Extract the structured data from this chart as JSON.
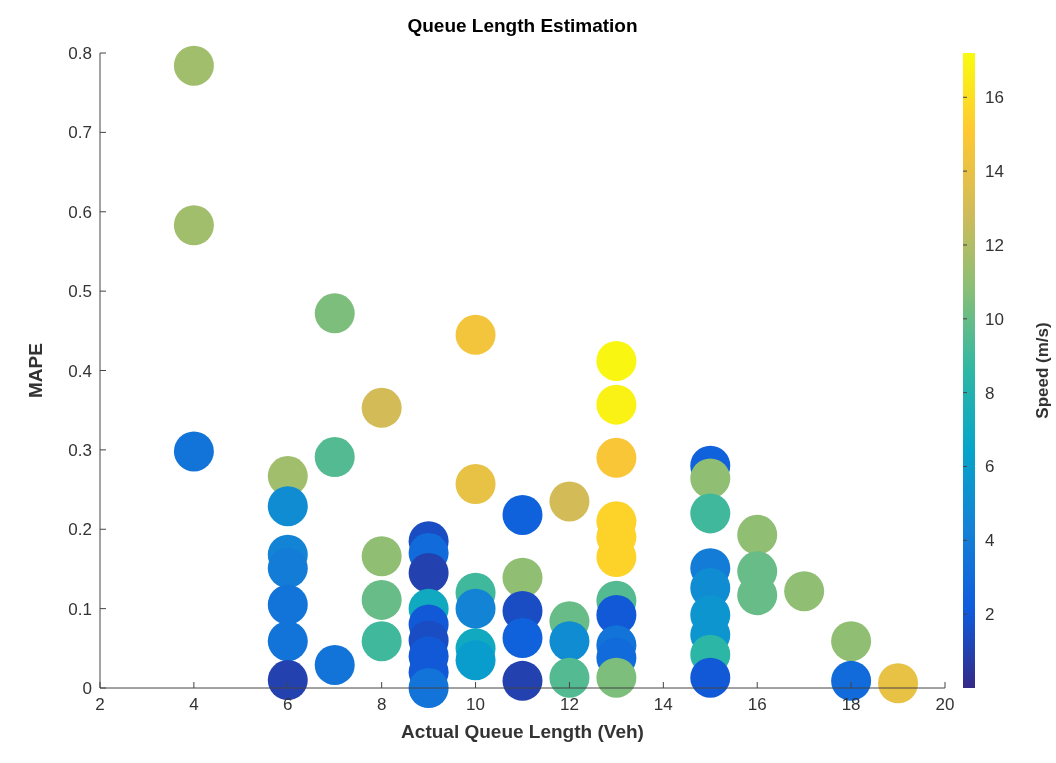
{
  "chart_data": {
    "type": "scatter",
    "title": "Queue Length Estimation",
    "xlabel": "Actual Queue Length (Veh)",
    "ylabel": "MAPE",
    "clabel": "Speed (m/s)",
    "x": [
      4,
      4,
      4,
      6,
      6,
      6,
      6,
      6,
      6,
      6,
      7,
      7,
      7,
      8,
      8,
      8,
      8,
      9,
      9,
      9,
      9,
      9,
      9,
      9,
      9,
      9,
      10,
      10,
      10,
      10,
      10,
      10,
      11,
      11,
      11,
      11,
      11,
      12,
      12,
      12,
      12,
      13,
      13,
      13,
      13,
      13,
      13,
      13,
      13,
      13,
      13,
      13,
      15,
      15,
      15,
      15,
      15,
      15,
      15,
      15,
      15,
      16,
      16,
      16,
      17,
      18,
      18,
      19
    ],
    "values": [
      0.784,
      0.583,
      0.298,
      0.267,
      0.229,
      0.168,
      0.151,
      0.105,
      0.059,
      0.01,
      0.472,
      0.291,
      0.029,
      0.353,
      0.166,
      0.111,
      0.059,
      0.185,
      0.17,
      0.145,
      0.1,
      0.08,
      0.06,
      0.04,
      0.02,
      0.0,
      0.445,
      0.257,
      0.12,
      0.1,
      0.05,
      0.035,
      0.218,
      0.139,
      0.097,
      0.063,
      0.009,
      0.235,
      0.084,
      0.059,
      0.013,
      0.412,
      0.357,
      0.29,
      0.21,
      0.19,
      0.165,
      0.11,
      0.092,
      0.054,
      0.038,
      0.013,
      0.28,
      0.264,
      0.22,
      0.151,
      0.126,
      0.092,
      0.067,
      0.042,
      0.013,
      0.193,
      0.147,
      0.117,
      0.122,
      0.059,
      0.009,
      0.006
    ],
    "cvalues": [
      11.5,
      11.5,
      3.5,
      11.5,
      5,
      4.5,
      4,
      3.5,
      3.5,
      1,
      10.5,
      9.5,
      3.5,
      13,
      11,
      10,
      9,
      1.5,
      3,
      1,
      7,
      2,
      1.5,
      2,
      2,
      3.5,
      14.5,
      14,
      9,
      4.5,
      7,
      6,
      2.5,
      11,
      1.5,
      2.5,
      1,
      13,
      10,
      5,
      9.5,
      17,
      16.8,
      14.8,
      15.5,
      15.5,
      15.5,
      9.5,
      2,
      3.5,
      3,
      10.5,
      2.5,
      11,
      9,
      4,
      5,
      5.5,
      5.5,
      8.5,
      2,
      11,
      10,
      10,
      11,
      11,
      3,
      14
    ],
    "marker": "circle",
    "grid": false,
    "xlim": [
      2,
      20
    ],
    "xticks": [
      2,
      4,
      6,
      8,
      10,
      12,
      14,
      16,
      18,
      20
    ],
    "ylim": [
      0,
      0.8
    ],
    "yticks": [
      0,
      0.1,
      0.2,
      0.3,
      0.4,
      0.5,
      0.6,
      0.7,
      0.8
    ],
    "clim": [
      0,
      17.2
    ],
    "cticks": [
      2,
      4,
      6,
      8,
      10,
      12,
      14,
      16
    ]
  }
}
